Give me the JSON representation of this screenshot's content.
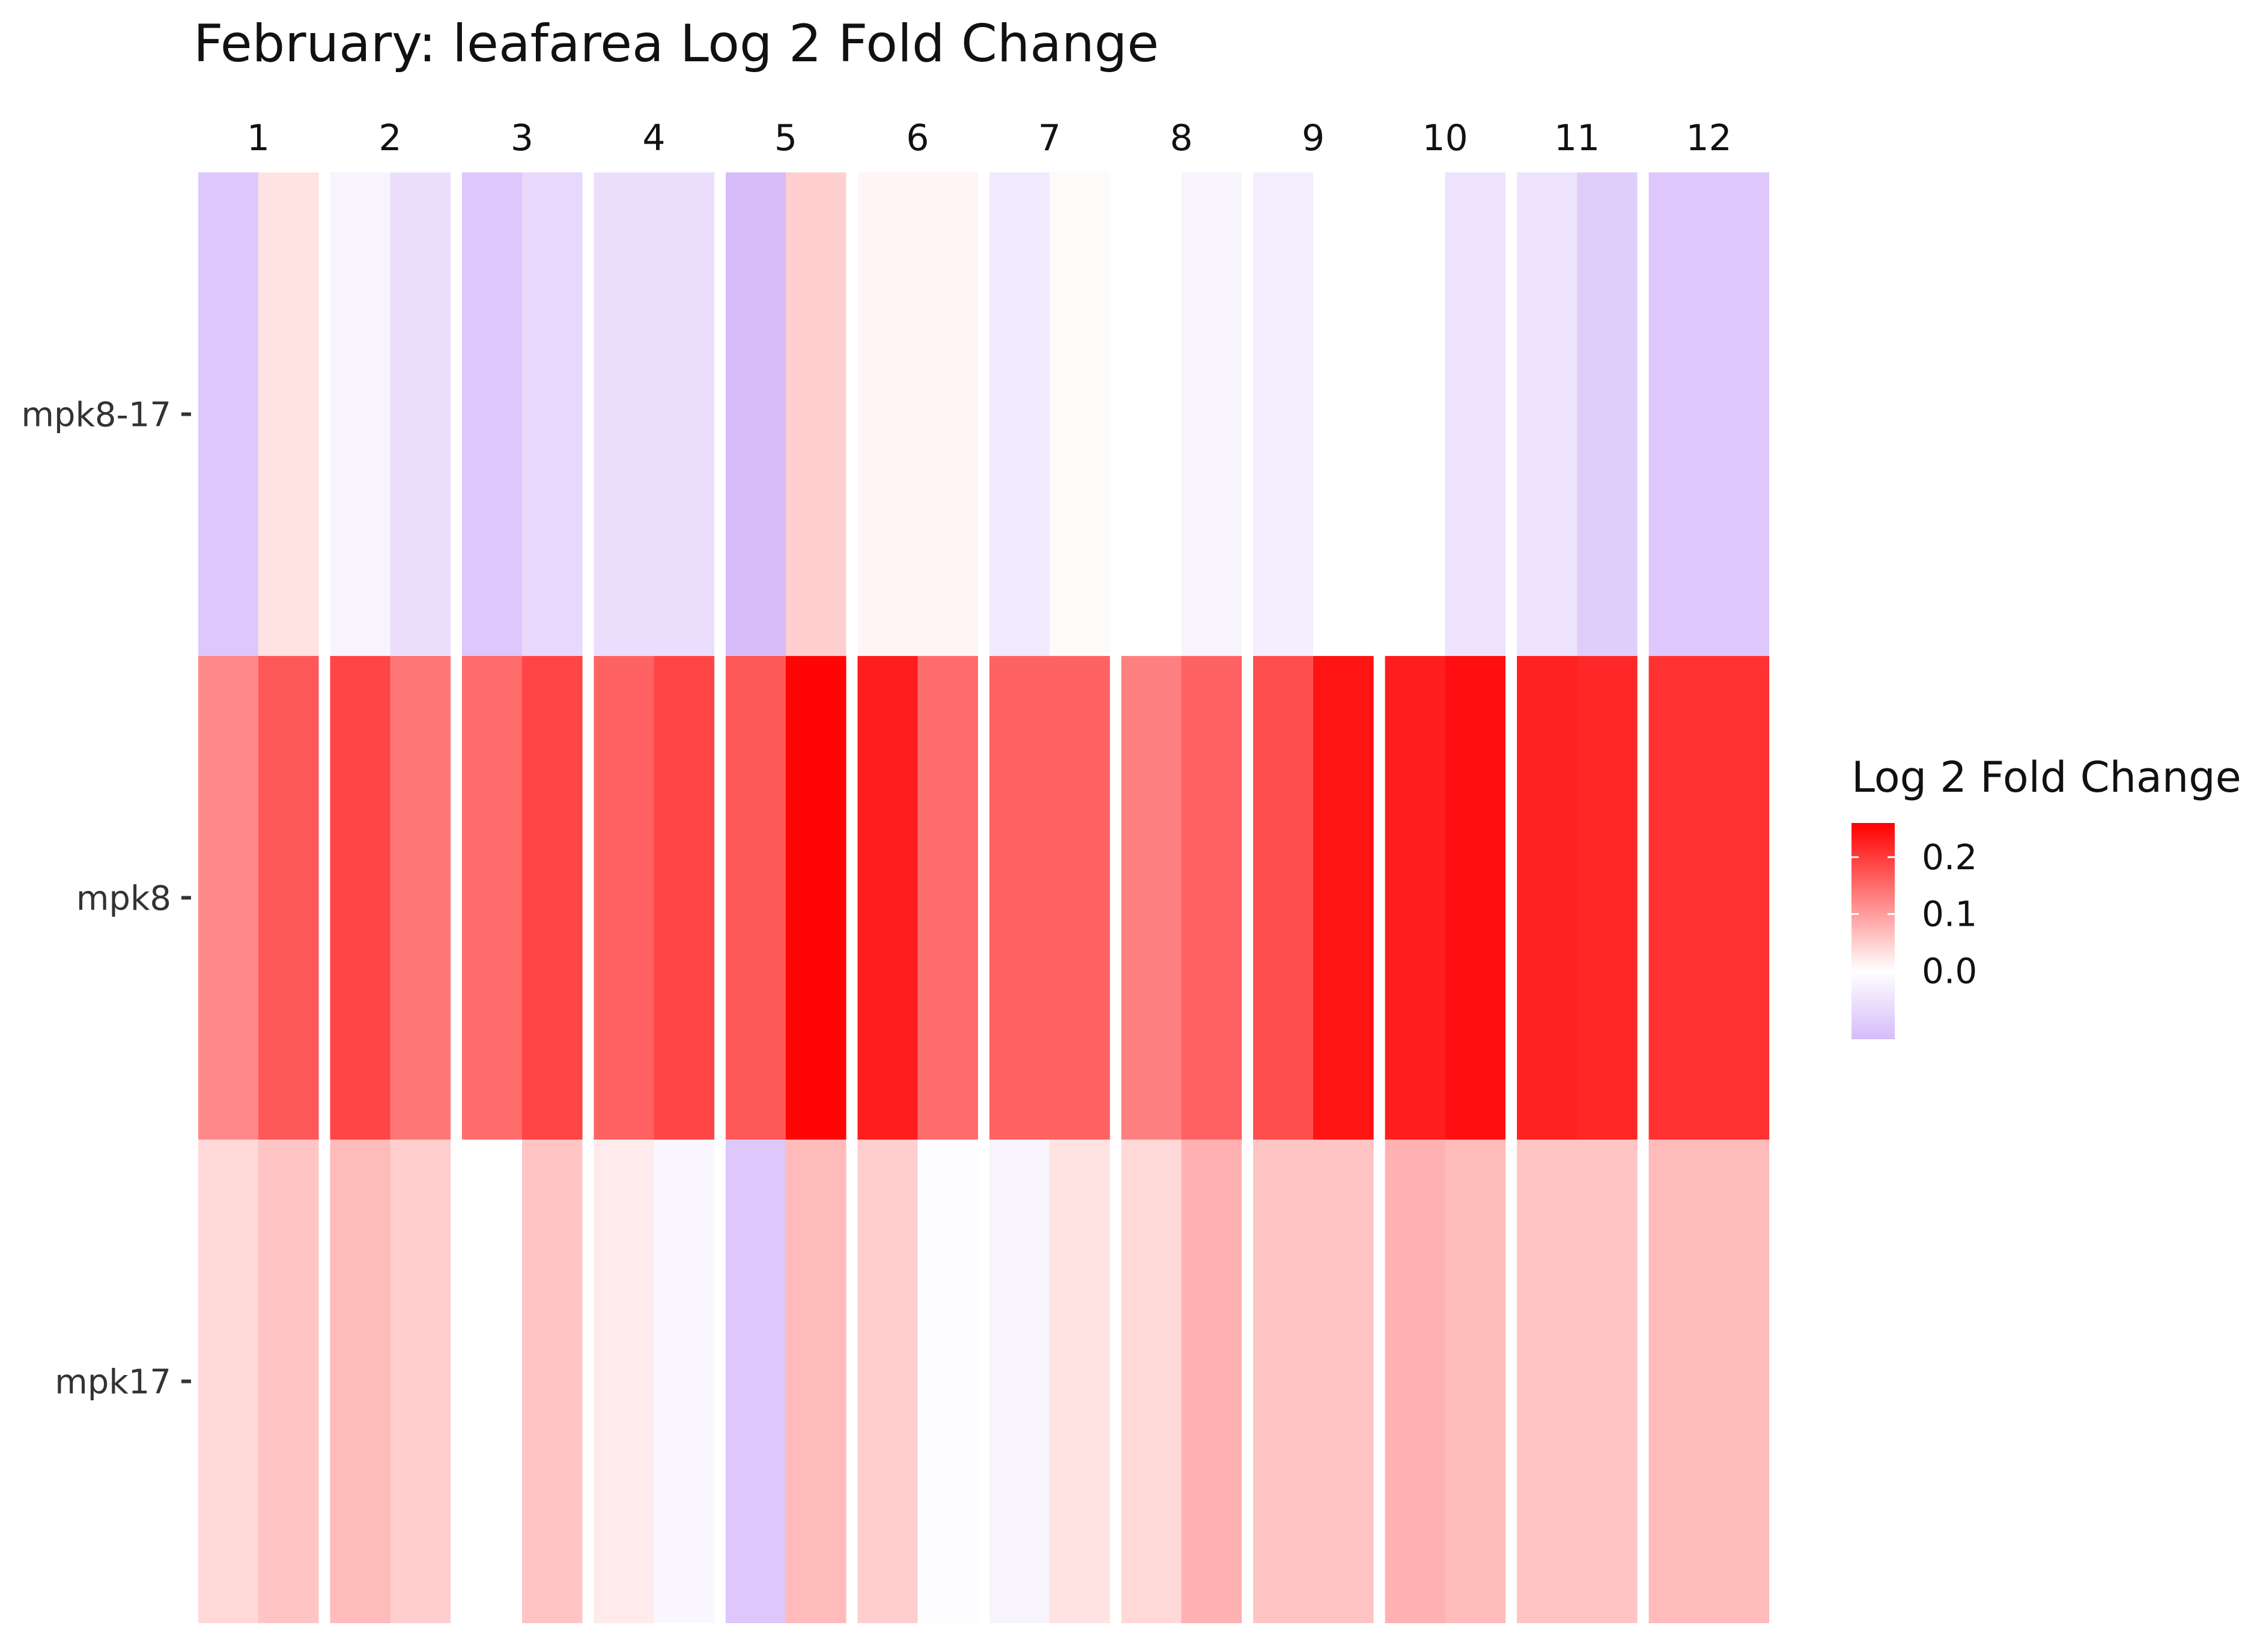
{
  "chart_data": {
    "type": "heatmap",
    "title": "February: leafarea Log 2 Fold Change",
    "columns": [
      "1",
      "2",
      "3",
      "4",
      "5",
      "6",
      "7",
      "8",
      "9",
      "10",
      "11",
      "12"
    ],
    "rows": [
      "mpk8-17",
      "mpk8",
      "mpk17"
    ],
    "subcolumns_per_column": 2,
    "values": [
      [
        -0.1,
        0.03,
        -0.02,
        -0.06,
        -0.1,
        -0.07,
        -0.06,
        -0.06,
        -0.12,
        0.05,
        0.01,
        0.01,
        -0.04,
        0.005,
        0.0,
        -0.02,
        -0.03,
        0.0,
        0.0,
        -0.05,
        -0.05,
        -0.09,
        -0.1,
        -0.1
      ],
      [
        0.12,
        0.17,
        0.19,
        0.14,
        0.15,
        0.19,
        0.16,
        0.19,
        0.17,
        0.255,
        0.23,
        0.15,
        0.16,
        0.16,
        0.13,
        0.16,
        0.18,
        0.24,
        0.23,
        0.245,
        0.225,
        0.22,
        0.21,
        0.21
      ],
      [
        0.04,
        0.06,
        0.07,
        0.05,
        0.0,
        0.06,
        0.02,
        -0.015,
        -0.1,
        0.07,
        0.05,
        -0.005,
        -0.02,
        0.03,
        0.04,
        0.08,
        0.06,
        0.06,
        0.08,
        0.07,
        0.06,
        0.06,
        0.07,
        0.07
      ]
    ],
    "legend": {
      "title": "Log 2 Fold Change",
      "ticks": [
        "0.2",
        "0.1",
        "0.0"
      ],
      "tick_values": [
        0.2,
        0.1,
        0.0
      ],
      "range": [
        -0.12,
        0.26
      ]
    },
    "colors": {
      "low": "#d6bcfa",
      "mid": "#ffffff",
      "high": "#ff0000"
    },
    "grid": false
  }
}
